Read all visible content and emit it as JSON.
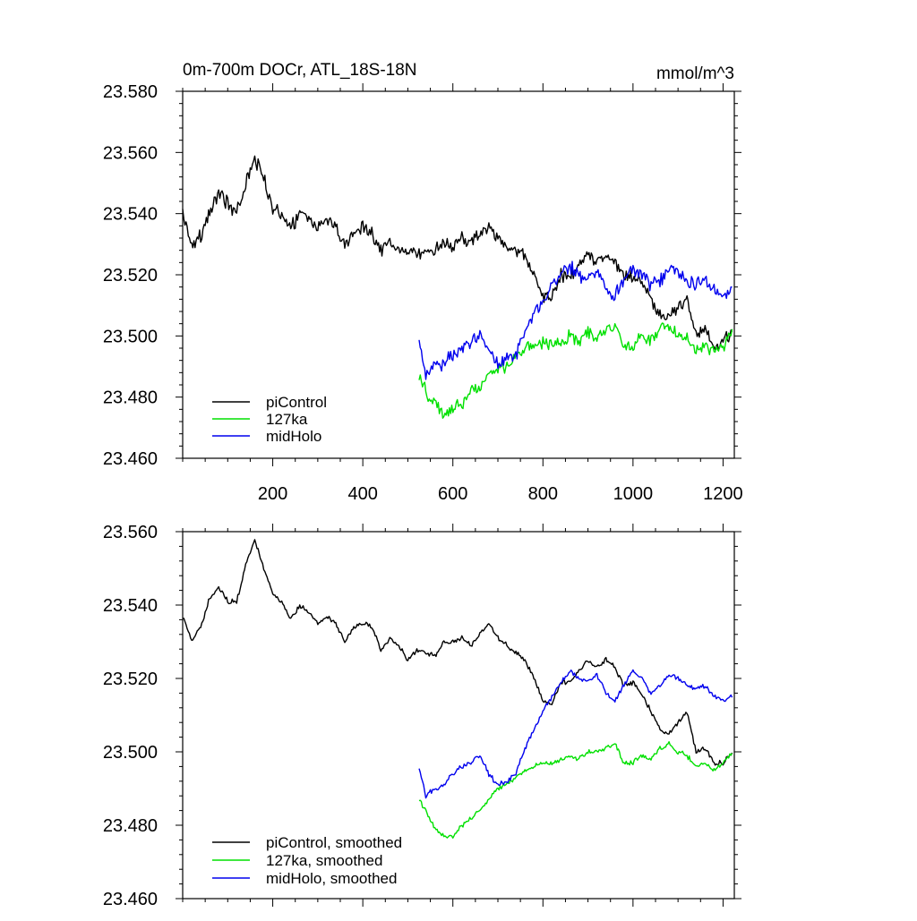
{
  "figure": {
    "title_left": "0m-700m DOCr, ATL_18S-18N",
    "title_right": "mmol/m^3"
  },
  "chart_data": [
    {
      "type": "line",
      "xlim": [
        0,
        1225
      ],
      "ylim": [
        23.46,
        23.58
      ],
      "yticks": [
        23.46,
        23.48,
        23.5,
        23.52,
        23.54,
        23.56,
        23.58
      ],
      "ytick_labels": [
        "23.460",
        "23.480",
        "23.500",
        "23.520",
        "23.540",
        "23.560",
        "23.580"
      ],
      "xticks": [
        200,
        400,
        600,
        800,
        1000,
        1200
      ],
      "xtick_labels": [
        "200",
        "400",
        "600",
        "800",
        "1000",
        "1200"
      ],
      "legend_position": "bottom-left",
      "series": [
        {
          "name": "piControl",
          "color": "#000000",
          "x": [
            0,
            20,
            40,
            60,
            80,
            100,
            120,
            140,
            160,
            180,
            200,
            220,
            240,
            260,
            280,
            300,
            320,
            340,
            360,
            380,
            400,
            420,
            440,
            460,
            480,
            500,
            520,
            540,
            560,
            580,
            600,
            620,
            640,
            660,
            680,
            700,
            720,
            740,
            760,
            780,
            800,
            820,
            840,
            860,
            880,
            900,
            920,
            940,
            960,
            980,
            1000,
            1020,
            1040,
            1060,
            1080,
            1100,
            1120,
            1140,
            1160,
            1180,
            1200,
            1220
          ],
          "y": [
            23.541,
            23.53,
            23.533,
            23.54,
            23.547,
            23.543,
            23.54,
            23.55,
            23.558,
            23.552,
            23.542,
            23.54,
            23.535,
            23.54,
            23.538,
            23.535,
            23.538,
            23.536,
            23.53,
            23.534,
            23.536,
            23.534,
            23.528,
            23.531,
            23.529,
            23.527,
            23.528,
            23.527,
            23.528,
            23.53,
            23.53,
            23.532,
            23.53,
            23.533,
            23.536,
            23.532,
            23.529,
            23.528,
            23.526,
            23.52,
            23.513,
            23.512,
            23.52,
            23.519,
            23.523,
            23.526,
            23.524,
            23.526,
            23.524,
            23.519,
            23.52,
            23.517,
            23.512,
            23.507,
            23.505,
            23.51,
            23.512,
            23.5,
            23.502,
            23.496,
            23.498,
            23.501
          ]
        },
        {
          "name": "127ka",
          "color": "#00e000",
          "x": [
            525,
            540,
            560,
            580,
            600,
            620,
            640,
            660,
            680,
            700,
            720,
            740,
            760,
            780,
            800,
            820,
            840,
            860,
            880,
            900,
            920,
            940,
            960,
            980,
            1000,
            1020,
            1040,
            1060,
            1080,
            1100,
            1120,
            1140,
            1160,
            1180,
            1200,
            1220
          ],
          "y": [
            23.486,
            23.482,
            23.478,
            23.474,
            23.476,
            23.478,
            23.482,
            23.483,
            23.487,
            23.49,
            23.49,
            23.493,
            23.496,
            23.497,
            23.498,
            23.497,
            23.498,
            23.5,
            23.498,
            23.501,
            23.5,
            23.502,
            23.503,
            23.497,
            23.497,
            23.5,
            23.498,
            23.502,
            23.503,
            23.5,
            23.499,
            23.496,
            23.497,
            23.495,
            23.497,
            23.5
          ]
        },
        {
          "name": "midHolo",
          "color": "#0000ee",
          "x": [
            525,
            540,
            560,
            580,
            600,
            620,
            640,
            660,
            680,
            700,
            720,
            740,
            760,
            780,
            800,
            820,
            840,
            860,
            880,
            900,
            920,
            940,
            960,
            980,
            1000,
            1020,
            1040,
            1060,
            1080,
            1100,
            1120,
            1140,
            1160,
            1180,
            1200,
            1220
          ],
          "y": [
            23.498,
            23.487,
            23.49,
            23.491,
            23.494,
            23.496,
            23.498,
            23.5,
            23.494,
            23.491,
            23.492,
            23.494,
            23.502,
            23.507,
            23.511,
            23.516,
            23.52,
            23.523,
            23.52,
            23.519,
            23.522,
            23.516,
            23.513,
            23.519,
            23.522,
            23.521,
            23.516,
            23.518,
            23.522,
            23.52,
            23.518,
            23.517,
            23.519,
            23.515,
            23.514,
            23.515
          ]
        }
      ]
    },
    {
      "type": "line",
      "xlim": [
        0,
        1225
      ],
      "ylim": [
        23.46,
        23.56
      ],
      "yticks": [
        23.46,
        23.48,
        23.5,
        23.52,
        23.54,
        23.56
      ],
      "ytick_labels": [
        "23.460",
        "23.480",
        "23.500",
        "23.520",
        "23.540",
        "23.560"
      ],
      "xticks": [
        200,
        400,
        600,
        800,
        1000,
        1200
      ],
      "legend_position": "bottom-left",
      "series": [
        {
          "name": "piControl, smoothed",
          "color": "#000000",
          "x": [
            0,
            20,
            40,
            60,
            80,
            100,
            120,
            140,
            160,
            180,
            200,
            220,
            240,
            260,
            280,
            300,
            320,
            340,
            360,
            380,
            400,
            420,
            440,
            460,
            480,
            500,
            520,
            540,
            560,
            580,
            600,
            620,
            640,
            660,
            680,
            700,
            720,
            740,
            760,
            780,
            800,
            820,
            840,
            860,
            880,
            900,
            920,
            940,
            960,
            980,
            1000,
            1020,
            1040,
            1060,
            1080,
            1100,
            1120,
            1140,
            1160,
            1180,
            1200,
            1220
          ],
          "y": [
            23.537,
            23.53,
            23.534,
            23.542,
            23.545,
            23.541,
            23.541,
            23.551,
            23.558,
            23.55,
            23.543,
            23.541,
            23.536,
            23.54,
            23.538,
            23.535,
            23.537,
            23.535,
            23.53,
            23.534,
            23.535,
            23.534,
            23.528,
            23.531,
            23.529,
            23.525,
            23.528,
            23.527,
            23.526,
            23.53,
            23.53,
            23.531,
            23.529,
            23.532,
            23.535,
            23.531,
            23.529,
            23.527,
            23.525,
            23.52,
            23.514,
            23.513,
            23.519,
            23.519,
            23.522,
            23.525,
            23.523,
            23.525,
            23.523,
            23.518,
            23.519,
            23.516,
            23.511,
            23.506,
            23.505,
            23.508,
            23.511,
            23.5,
            23.501,
            23.497,
            23.497,
            23.5
          ]
        },
        {
          "name": "127ka, smoothed",
          "color": "#00e000",
          "x": [
            525,
            540,
            560,
            580,
            600,
            620,
            640,
            660,
            680,
            700,
            720,
            740,
            760,
            780,
            800,
            820,
            840,
            860,
            880,
            900,
            920,
            940,
            960,
            980,
            1000,
            1020,
            1040,
            1060,
            1080,
            1100,
            1120,
            1140,
            1160,
            1180,
            1200,
            1220
          ],
          "y": [
            23.487,
            23.484,
            23.479,
            23.477,
            23.477,
            23.48,
            23.482,
            23.484,
            23.487,
            23.49,
            23.491,
            23.493,
            23.495,
            23.496,
            23.497,
            23.497,
            23.498,
            23.499,
            23.498,
            23.5,
            23.5,
            23.501,
            23.502,
            23.497,
            23.497,
            23.499,
            23.498,
            23.501,
            23.502,
            23.5,
            23.499,
            23.496,
            23.497,
            23.495,
            23.497,
            23.5
          ]
        },
        {
          "name": "midHolo, smoothed",
          "color": "#0000ee",
          "x": [
            525,
            540,
            560,
            580,
            600,
            620,
            640,
            660,
            680,
            700,
            720,
            740,
            760,
            780,
            800,
            820,
            840,
            860,
            880,
            900,
            920,
            940,
            960,
            980,
            1000,
            1020,
            1040,
            1060,
            1080,
            1100,
            1120,
            1140,
            1160,
            1180,
            1200,
            1220
          ],
          "y": [
            23.496,
            23.488,
            23.49,
            23.491,
            23.494,
            23.496,
            23.497,
            23.499,
            23.494,
            23.491,
            23.492,
            23.494,
            23.501,
            23.506,
            23.511,
            23.515,
            23.519,
            23.522,
            23.52,
            23.519,
            23.521,
            23.516,
            23.514,
            23.518,
            23.522,
            23.52,
            23.516,
            23.518,
            23.521,
            23.52,
            23.518,
            23.517,
            23.518,
            23.515,
            23.514,
            23.515
          ]
        }
      ]
    }
  ]
}
